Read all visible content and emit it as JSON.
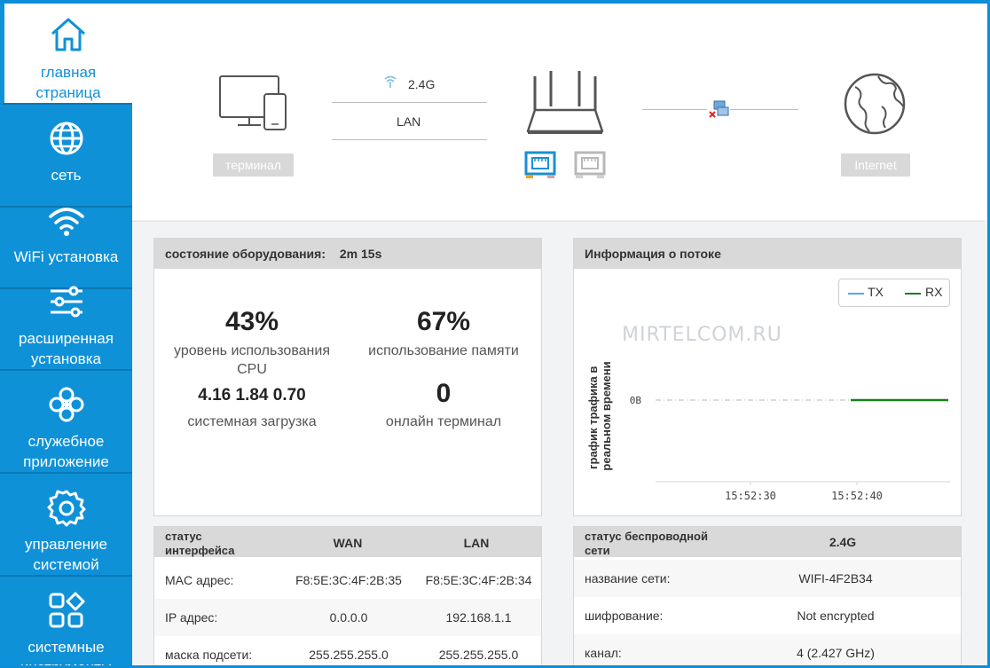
{
  "sidebar": {
    "items": [
      {
        "label_1": "главная",
        "label_2": "страница",
        "icon": "home-icon",
        "active": true
      },
      {
        "label_1": "сеть",
        "label_2": "",
        "icon": "globe-icon",
        "active": false
      },
      {
        "label_1": "WiFi установка",
        "label_2": "",
        "icon": "wifi-icon",
        "active": false
      },
      {
        "label_1": "расширенная",
        "label_2": "установка",
        "icon": "sliders-icon",
        "active": false
      },
      {
        "label_1": "служебное",
        "label_2": "приложение",
        "icon": "flower-icon",
        "active": false
      },
      {
        "label_1": "управление",
        "label_2": "системой",
        "icon": "gear-icon",
        "active": false
      },
      {
        "label_1": "системные",
        "label_2": "инструменты",
        "icon": "tools-grid-icon",
        "active": false
      }
    ]
  },
  "topology": {
    "terminal_button": "терминал",
    "wifi_band": "2.4G",
    "lan_label": "LAN",
    "internet_button": "Internet"
  },
  "device_status": {
    "title": "состояние оборудования:",
    "uptime": "2m 15s",
    "cpu_value": "43%",
    "cpu_label_1": "уровень использования",
    "cpu_label_2": "CPU",
    "memory_value": "67%",
    "memory_label": "использование памяти",
    "load_value": "4.16 1.84 0.70",
    "load_label": "системная загрузка",
    "online_value": "0",
    "online_label": "онлайн терминал"
  },
  "traffic": {
    "title": "Информация о потоке",
    "watermark": "MIRTELCOM.RU",
    "ylabel_1": "график трафика в",
    "ylabel_2": "реальном времени"
  },
  "chart_data": {
    "type": "line",
    "title": "Информация о потоке",
    "ylabel": "график трафика в реальном времени",
    "xlabel": "",
    "x_ticks": [
      "15:52:30",
      "15:52:40"
    ],
    "y_ticks": [
      "0B"
    ],
    "legend_position": "top-right",
    "series": [
      {
        "name": "TX",
        "color": "#5aa9e6",
        "values": [
          0,
          0
        ]
      },
      {
        "name": "RX",
        "color": "#1a7f1a",
        "values": [
          0,
          0
        ]
      }
    ]
  },
  "interface_status": {
    "title_1": "статус",
    "title_2": "интерфейса",
    "col_wan": "WAN",
    "col_lan": "LAN",
    "rows": [
      {
        "label": "MAC адрес:",
        "wan": "F8:5E:3C:4F:2B:35",
        "lan": "F8:5E:3C:4F:2B:34"
      },
      {
        "label": "IP адрес:",
        "wan": "0.0.0.0",
        "lan": "192.168.1.1"
      },
      {
        "label": "маска подсети:",
        "wan": "255.255.255.0",
        "lan": "255.255.255.0"
      }
    ]
  },
  "wireless_status": {
    "title_1": "статус беспроводной",
    "title_2": "сети",
    "col_band": "2.4G",
    "rows": [
      {
        "label": "название сети:",
        "value": "WIFI-4F2B34"
      },
      {
        "label": "шифрование:",
        "value": "Not encrypted"
      },
      {
        "label": "канал:",
        "value": "4 (2.427 GHz)"
      }
    ]
  },
  "colors": {
    "accent": "#0f91d8",
    "port_active": "#1a8fd6",
    "port_inactive": "#b8b8b8"
  }
}
